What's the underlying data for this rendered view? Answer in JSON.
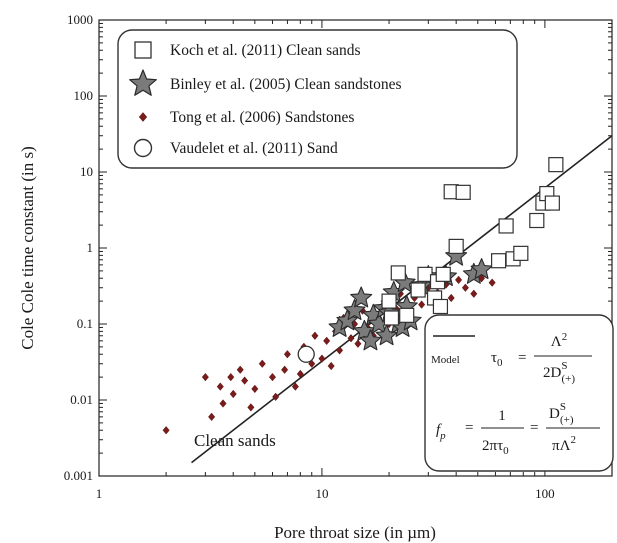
{
  "chart_data": {
    "type": "scatter",
    "title": "",
    "xlabel": "Pore throat size (in µm)",
    "ylabel": "Cole Cole  time constant (in s)",
    "xscale": "log",
    "yscale": "log",
    "xlim": [
      1,
      200
    ],
    "ylim": [
      0.001,
      1000
    ],
    "x_ticks": [
      1,
      10,
      100
    ],
    "x_tick_labels": [
      "1",
      "10",
      "100"
    ],
    "y_ticks": [
      0.001,
      0.01,
      0.1,
      1,
      10,
      100,
      1000
    ],
    "y_tick_labels": [
      "0.001",
      "0.01",
      "0.1",
      "1",
      "10",
      "100",
      "1000"
    ],
    "legend_position": "top-left",
    "series": [
      {
        "name": "Koch et al. (2011) Clean sands",
        "marker": "open-square",
        "color": "#ffffff",
        "stroke": "#333333",
        "x": [
          20,
          20.5,
          22,
          24,
          27,
          29,
          32,
          33,
          34,
          35,
          38,
          40,
          43,
          62,
          67,
          72,
          78,
          92,
          98,
          102,
          108,
          112
        ],
        "y": [
          0.2,
          0.12,
          0.47,
          0.13,
          0.28,
          0.45,
          0.22,
          0.36,
          0.17,
          0.45,
          5.5,
          1.05,
          5.4,
          0.68,
          1.95,
          0.72,
          0.85,
          2.3,
          3.9,
          5.2,
          3.9,
          12.5
        ]
      },
      {
        "name": "Binley et al. (2005) Clean sandstones",
        "marker": "star",
        "color": "#7b7b7b",
        "stroke": "#2a2a2a",
        "x": [
          12,
          13,
          14,
          15,
          15.5,
          16.5,
          17,
          18,
          19,
          19.5,
          20,
          21,
          22,
          23,
          23.5,
          24,
          25,
          28,
          30,
          36,
          40,
          48,
          52
        ],
        "y": [
          0.09,
          0.11,
          0.15,
          0.22,
          0.08,
          0.06,
          0.13,
          0.1,
          0.16,
          0.07,
          0.14,
          0.26,
          0.1,
          0.09,
          0.35,
          0.17,
          0.11,
          0.32,
          0.42,
          0.42,
          0.78,
          0.45,
          0.52
        ]
      },
      {
        "name": "Tong et al. (2006) Sandstones",
        "marker": "diamond",
        "color": "#7a1c1c",
        "stroke": "#5a1010",
        "x": [
          2,
          3,
          3.2,
          3.5,
          3.6,
          3.9,
          4,
          4.3,
          4.5,
          4.8,
          5,
          5.4,
          6,
          6.2,
          6.8,
          7,
          7.6,
          8,
          8.3,
          9,
          9.3,
          10,
          10.5,
          11,
          11.5,
          12,
          12.5,
          13.5,
          14,
          14.5,
          15.2,
          16,
          17,
          18,
          19,
          20,
          21.5,
          22.5,
          24,
          26,
          28,
          30,
          33,
          36,
          38,
          41,
          44,
          48,
          52,
          58
        ],
        "y": [
          0.004,
          0.02,
          0.006,
          0.015,
          0.009,
          0.02,
          0.012,
          0.025,
          0.018,
          0.008,
          0.014,
          0.03,
          0.02,
          0.011,
          0.025,
          0.04,
          0.015,
          0.022,
          0.05,
          0.03,
          0.07,
          0.035,
          0.06,
          0.028,
          0.08,
          0.045,
          0.12,
          0.065,
          0.1,
          0.055,
          0.15,
          0.09,
          0.07,
          0.12,
          0.2,
          0.1,
          0.16,
          0.25,
          0.14,
          0.22,
          0.18,
          0.3,
          0.26,
          0.33,
          0.22,
          0.38,
          0.3,
          0.25,
          0.4,
          0.35
        ]
      },
      {
        "name": "Vaudelet et al. (2011) Sand",
        "marker": "open-circle",
        "color": "#ffffff",
        "stroke": "#333333",
        "x": [
          8.5
        ],
        "y": [
          0.04
        ]
      }
    ],
    "model_line": {
      "x": [
        2.6,
        200
      ],
      "y": [
        0.0015,
        30
      ]
    },
    "annotations": {
      "clean_sands": "Clean sands",
      "model_label": "Model",
      "tau_lhs": "τ",
      "tau_sub": "0",
      "eq": "=",
      "tau_num": "Λ",
      "tau_num_sup": "2",
      "tau_den": "2D",
      "d_sup": "S",
      "d_sub": "(+)",
      "fp_lhs": "f",
      "fp_sub": "p",
      "fp_num1": "1",
      "fp_den1": "2πτ",
      "fp_den1_sub": "0",
      "fp_num2": "D",
      "fp_den2": "πΛ",
      "fp_den2_sup": "2"
    }
  },
  "colors": {
    "axis": "#222222",
    "model_line": "#222222",
    "box_stroke": "#333333"
  }
}
